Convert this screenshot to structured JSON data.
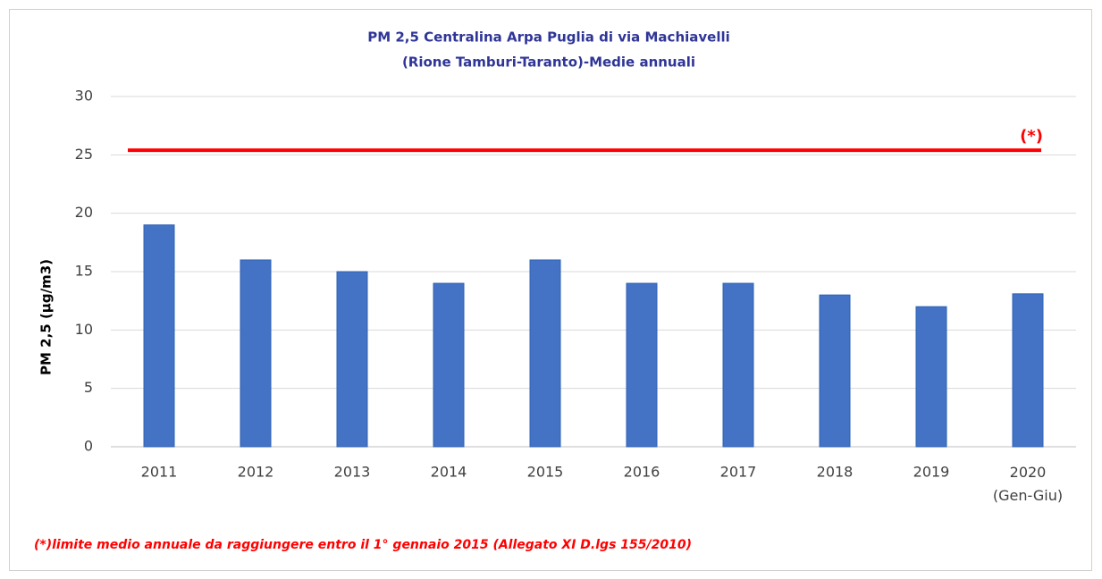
{
  "chart_data": {
    "type": "bar",
    "title": [
      "PM 2,5 Centralina Arpa Puglia di via Machiavelli",
      "(Rione Tamburi-Taranto)-Medie annuali"
    ],
    "y_label": "PM 2,5 (µg/m3)",
    "categories": [
      "2011",
      "2012",
      "2013",
      "2014",
      "2015",
      "2016",
      "2017",
      "2018",
      "2019",
      "2020\n(Gen-Giu)"
    ],
    "values": [
      19,
      16,
      15,
      14,
      16,
      14,
      14,
      13,
      12,
      13.1
    ],
    "color": "#4472c4",
    "ylim": [
      0,
      30
    ],
    "yticks": [
      0,
      5,
      10,
      15,
      20,
      25,
      30
    ],
    "grid": true,
    "limit": {
      "value": 25.4,
      "label": "(*)",
      "color": "#ff0000"
    },
    "note": "(*)limite medio annuale da raggiungere entro il 1° gennaio 2015 (Allegato XI D.lgs 155/2010)"
  }
}
